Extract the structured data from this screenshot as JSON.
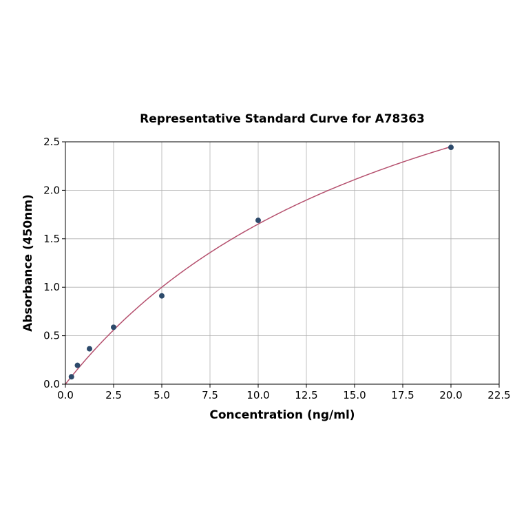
{
  "chart_data": {
    "type": "scatter",
    "title": "Representative Standard Curve for A78363",
    "xlabel": "Concentration (ng/ml)",
    "ylabel": "Absorbance (450nm)",
    "xlim": [
      0,
      22.5
    ],
    "ylim": [
      0,
      2.5
    ],
    "xticks": [
      "0.0",
      "2.5",
      "5.0",
      "7.5",
      "10.0",
      "12.5",
      "15.0",
      "17.5",
      "20.0",
      "22.5"
    ],
    "yticks": [
      "0.0",
      "0.5",
      "1.0",
      "1.5",
      "2.0",
      "2.5"
    ],
    "grid": true,
    "points": {
      "x": [
        0.3125,
        0.625,
        1.25,
        2.5,
        5,
        10,
        20
      ],
      "y": [
        0.076,
        0.194,
        0.365,
        0.587,
        0.911,
        1.69,
        2.443
      ]
    },
    "fit_curve": {
      "model": "a*x/(b+x)",
      "a": 4.74,
      "b": 18.7,
      "x_range": [
        0,
        20
      ]
    },
    "colors": {
      "points": "#2d4a6b",
      "curve": "#b5506e",
      "grid": "#b0b0b0"
    }
  }
}
